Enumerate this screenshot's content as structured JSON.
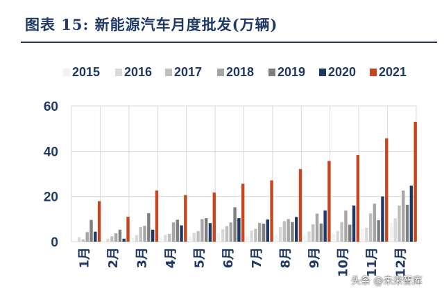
{
  "figure": {
    "title": "图表 15:  新能源汽车月度批发(万辆)"
  },
  "watermark": "头条 @未来智库",
  "chart_data": {
    "type": "bar",
    "categories": [
      "1月",
      "2月",
      "3月",
      "4月",
      "5月",
      "6月",
      "7月",
      "8月",
      "9月",
      "10月",
      "11月",
      "12月"
    ],
    "series": [
      {
        "name": "2015",
        "color": "#f2f2f2",
        "values": [
          0.5,
          0.4,
          1.6,
          2.0,
          2.4,
          3.8,
          2.5,
          3.0,
          2.7,
          3.6,
          5.6,
          8.4
        ]
      },
      {
        "name": "2016",
        "color": "#d9d9d9",
        "values": [
          2.0,
          1.3,
          2.9,
          3.0,
          4.0,
          5.5,
          5.0,
          6.4,
          4.5,
          4.7,
          6.2,
          10.4
        ]
      },
      {
        "name": "2017",
        "color": "#bfbfbf",
        "values": [
          1.0,
          2.4,
          6.4,
          3.4,
          4.7,
          6.9,
          5.7,
          9.1,
          7.7,
          8.7,
          12.5,
          16.0
        ]
      },
      {
        "name": "2018",
        "color": "#a6a6a6",
        "values": [
          4.2,
          3.7,
          7.0,
          8.5,
          10.0,
          8.5,
          8.3,
          10.0,
          12.4,
          13.8,
          16.8,
          22.6
        ]
      },
      {
        "name": "2019",
        "color": "#7f7f7f",
        "values": [
          9.6,
          5.3,
          12.6,
          9.7,
          10.4,
          15.2,
          8.0,
          8.7,
          8.0,
          7.5,
          9.5,
          16.3
        ]
      },
      {
        "name": "2020",
        "color": "#1f3864",
        "values": [
          4.4,
          1.3,
          5.3,
          7.2,
          8.2,
          10.4,
          9.8,
          10.9,
          13.8,
          16.0,
          20.0,
          24.8
        ]
      },
      {
        "name": "2021",
        "color": "#c8451f",
        "values": [
          17.9,
          11.0,
          22.6,
          20.6,
          21.7,
          25.6,
          27.1,
          32.1,
          35.7,
          38.3,
          45.7,
          53.0
        ]
      }
    ],
    "ylim": [
      0,
      60
    ],
    "yticks": [
      0,
      20,
      40,
      60
    ],
    "grid": true,
    "legend": "top"
  }
}
